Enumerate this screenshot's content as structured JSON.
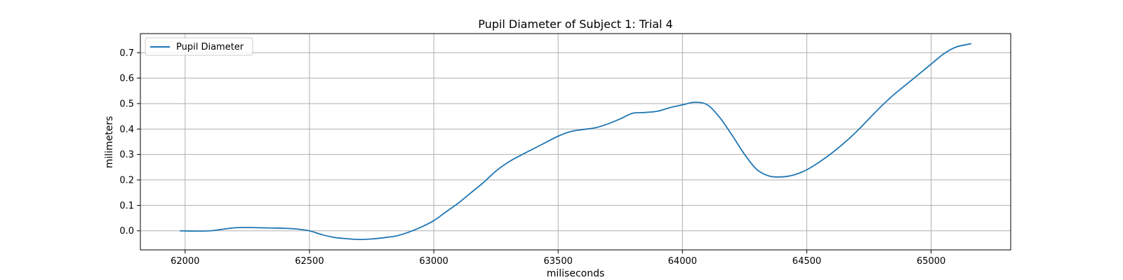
{
  "chart_data": {
    "type": "line",
    "title": "Pupil Diameter of Subject 1: Trial 4",
    "xlabel": "miliseconds",
    "ylabel": "milimeters",
    "xlim": [
      61820,
      65320
    ],
    "ylim": [
      -0.075,
      0.775
    ],
    "xticks": [
      62000,
      62500,
      63000,
      63500,
      64000,
      64500,
      65000
    ],
    "yticks": [
      0.0,
      0.1,
      0.2,
      0.3,
      0.4,
      0.5,
      0.6,
      0.7
    ],
    "grid": true,
    "legend_position": "top-left",
    "series": [
      {
        "name": "Pupil Diameter",
        "color": "#1f77b4",
        "x": [
          61980,
          62050,
          62100,
          62150,
          62200,
          62250,
          62300,
          62350,
          62400,
          62450,
          62500,
          62550,
          62600,
          62650,
          62700,
          62750,
          62800,
          62850,
          62900,
          62950,
          63000,
          63050,
          63100,
          63150,
          63200,
          63250,
          63300,
          63350,
          63400,
          63450,
          63500,
          63550,
          63600,
          63650,
          63700,
          63750,
          63800,
          63850,
          63900,
          63950,
          64000,
          64050,
          64100,
          64150,
          64200,
          64250,
          64300,
          64350,
          64400,
          64450,
          64500,
          64550,
          64600,
          64650,
          64700,
          64750,
          64800,
          64850,
          64900,
          64950,
          65000,
          65050,
          65100,
          65160
        ],
        "y": [
          0.0,
          -0.001,
          0.0,
          0.006,
          0.012,
          0.013,
          0.012,
          0.011,
          0.01,
          0.007,
          0.0,
          -0.015,
          -0.026,
          -0.031,
          -0.034,
          -0.032,
          -0.027,
          -0.02,
          -0.005,
          0.015,
          0.04,
          0.075,
          0.11,
          0.15,
          0.19,
          0.235,
          0.27,
          0.297,
          0.322,
          0.347,
          0.372,
          0.39,
          0.398,
          0.405,
          0.42,
          0.44,
          0.462,
          0.465,
          0.47,
          0.484,
          0.495,
          0.505,
          0.495,
          0.445,
          0.375,
          0.3,
          0.24,
          0.215,
          0.212,
          0.22,
          0.24,
          0.27,
          0.305,
          0.345,
          0.39,
          0.44,
          0.49,
          0.535,
          0.575,
          0.615,
          0.655,
          0.695,
          0.722,
          0.735
        ]
      }
    ]
  }
}
